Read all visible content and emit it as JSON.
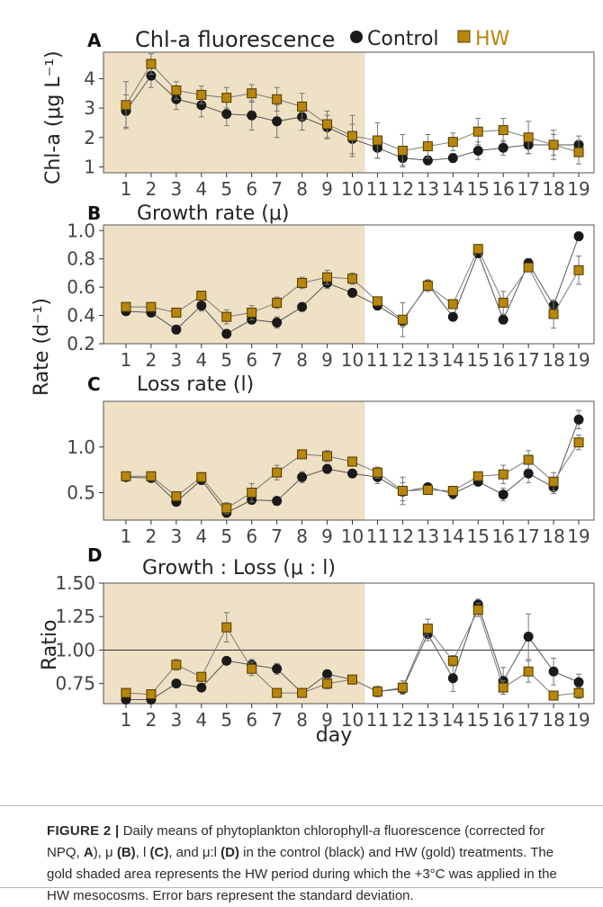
{
  "legend": {
    "control": "Control",
    "hw": "HW",
    "control_color": "#1a1a1a",
    "hw_color": "#b8860b"
  },
  "colors": {
    "shade": "#efe1c5",
    "axis": "#333333",
    "grid": "#333333"
  },
  "caption": {
    "label": "FIGURE 2 |",
    "text_1": " Daily means of phytoplankton chlorophyll-",
    "a": "a",
    "text_2": " fluorescence (corrected for NPQ, ",
    "A": "A",
    "text_3": "), μ ",
    "B": "(B)",
    "text_4": ", l ",
    "C": "(C)",
    "text_5": ", and μ:l ",
    "D": "(D)",
    "text_6": " in the control (black) and HW (gold) treatments. The gold shaded area represents the HW period during which the +3°C was applied in the HW mesocosms. Error bars represent the standard deviation."
  },
  "shared": {
    "rate_ylabel": "Rate (d⁻¹)",
    "xlabel": "day"
  },
  "chart_data": [
    {
      "panel": "A",
      "type": "line",
      "title": "Chl-a fluorescence",
      "ylabel": "Chl-a (μg L⁻¹)",
      "x": [
        1,
        2,
        3,
        4,
        5,
        6,
        7,
        8,
        9,
        10,
        11,
        12,
        13,
        14,
        15,
        16,
        17,
        18,
        19
      ],
      "ylim": [
        0.8,
        4.9
      ],
      "yticks": [
        1,
        2,
        3,
        4
      ],
      "shaded_days": [
        1,
        10
      ],
      "series": [
        {
          "name": "Control",
          "values": [
            2.9,
            4.1,
            3.3,
            3.1,
            2.8,
            2.75,
            2.55,
            2.7,
            2.35,
            1.95,
            1.65,
            1.3,
            1.22,
            1.3,
            1.55,
            1.65,
            1.75,
            1.75,
            1.75
          ],
          "err": [
            0.55,
            0.4,
            0.35,
            0.4,
            0.4,
            0.5,
            0.55,
            0.45,
            0.4,
            0.5,
            0.35,
            0.25,
            0.15,
            0.15,
            0.3,
            0.25,
            0.3,
            0.35,
            0.3
          ]
        },
        {
          "name": "HW",
          "values": [
            3.1,
            4.5,
            3.6,
            3.45,
            3.35,
            3.5,
            3.3,
            3.05,
            2.45,
            2.05,
            1.9,
            1.55,
            1.7,
            1.85,
            2.2,
            2.25,
            2.0,
            1.75,
            1.5
          ],
          "err": [
            0.8,
            0.35,
            0.3,
            0.3,
            0.35,
            0.3,
            0.4,
            0.45,
            0.45,
            0.7,
            0.6,
            0.55,
            0.4,
            0.3,
            0.45,
            0.4,
            0.55,
            0.5,
            0.4
          ]
        }
      ]
    },
    {
      "panel": "B",
      "type": "line",
      "title": "Growth rate (μ)",
      "ylabel": "",
      "x": [
        1,
        2,
        3,
        4,
        5,
        6,
        7,
        8,
        9,
        10,
        11,
        12,
        13,
        14,
        15,
        16,
        17,
        18,
        19
      ],
      "ylim": [
        0.2,
        1.04
      ],
      "yticks": [
        0.2,
        0.4,
        0.6,
        0.8,
        1.0
      ],
      "yticklabels": [
        "0.2",
        "0.4",
        "0.6",
        "0.8",
        "1.0"
      ],
      "shaded_days": [
        1,
        10
      ],
      "series": [
        {
          "name": "Control",
          "values": [
            0.43,
            0.42,
            0.3,
            0.47,
            0.27,
            0.37,
            0.35,
            0.46,
            0.63,
            0.56,
            0.47,
            0.36,
            0.62,
            0.39,
            0.84,
            0.37,
            0.77,
            0.47,
            0.96
          ],
          "err": [
            0.02,
            0.02,
            0.03,
            0.04,
            0.03,
            0.03,
            0.04,
            0.03,
            0.04,
            0.02,
            0.03,
            0.04,
            0.03,
            0.02,
            0.03,
            0.03,
            0.03,
            0.03,
            0.03
          ]
        },
        {
          "name": "HW",
          "values": [
            0.46,
            0.46,
            0.42,
            0.54,
            0.39,
            0.42,
            0.49,
            0.63,
            0.67,
            0.66,
            0.5,
            0.37,
            0.61,
            0.48,
            0.87,
            0.49,
            0.74,
            0.41,
            0.72
          ],
          "err": [
            0.03,
            0.03,
            0.02,
            0.02,
            0.05,
            0.05,
            0.04,
            0.04,
            0.05,
            0.04,
            0.02,
            0.12,
            0.04,
            0.02,
            0.03,
            0.08,
            0.03,
            0.1,
            0.1
          ]
        }
      ]
    },
    {
      "panel": "C",
      "type": "line",
      "title": "Loss rate (l)",
      "ylabel": "",
      "x": [
        1,
        2,
        3,
        4,
        5,
        6,
        7,
        8,
        9,
        10,
        11,
        12,
        13,
        14,
        15,
        16,
        17,
        18,
        19
      ],
      "ylim": [
        0.2,
        1.5
      ],
      "yticks": [
        0.5,
        1.0
      ],
      "yticklabels": [
        "0.5",
        "1.0"
      ],
      "shaded_days": [
        1,
        10
      ],
      "series": [
        {
          "name": "Control",
          "values": [
            0.67,
            0.66,
            0.4,
            0.64,
            0.28,
            0.42,
            0.41,
            0.67,
            0.76,
            0.71,
            0.67,
            0.51,
            0.56,
            0.49,
            0.62,
            0.48,
            0.71,
            0.56,
            1.3
          ],
          "err": [
            0.03,
            0.03,
            0.03,
            0.05,
            0.05,
            0.04,
            0.03,
            0.06,
            0.05,
            0.04,
            0.07,
            0.1,
            0.04,
            0.06,
            0.04,
            0.07,
            0.1,
            0.07,
            0.1
          ]
        },
        {
          "name": "HW",
          "values": [
            0.68,
            0.68,
            0.46,
            0.67,
            0.33,
            0.5,
            0.72,
            0.92,
            0.9,
            0.84,
            0.72,
            0.52,
            0.53,
            0.52,
            0.68,
            0.7,
            0.86,
            0.62,
            1.05
          ],
          "err": [
            0.03,
            0.03,
            0.03,
            0.05,
            0.06,
            0.1,
            0.08,
            0.03,
            0.06,
            0.05,
            0.06,
            0.15,
            0.04,
            0.05,
            0.04,
            0.1,
            0.1,
            0.1,
            0.08
          ]
        }
      ]
    },
    {
      "panel": "D",
      "type": "line",
      "title": "Growth : Loss (μ : l)",
      "ylabel": "Ratio",
      "xlabel": "day",
      "x": [
        1,
        2,
        3,
        4,
        5,
        6,
        7,
        8,
        9,
        10,
        11,
        12,
        13,
        14,
        15,
        16,
        17,
        18,
        19
      ],
      "ylim": [
        0.6,
        1.5
      ],
      "yticks": [
        0.75,
        1.0,
        1.25,
        1.5
      ],
      "yticklabels": [
        "0.75",
        "1.00",
        "1.25",
        "1.50"
      ],
      "hline": 1.0,
      "shaded_days": [
        1,
        10
      ],
      "series": [
        {
          "name": "Control",
          "values": [
            0.63,
            0.63,
            0.75,
            0.72,
            0.92,
            0.89,
            0.86,
            0.68,
            0.82,
            0.78,
            0.69,
            0.71,
            1.12,
            0.79,
            1.34,
            0.77,
            1.1,
            0.84,
            0.76
          ],
          "err": [
            0.02,
            0.02,
            0.02,
            0.02,
            0.02,
            0.04,
            0.04,
            0.02,
            0.03,
            0.03,
            0.04,
            0.03,
            0.05,
            0.1,
            0.04,
            0.1,
            0.17,
            0.1,
            0.06
          ]
        },
        {
          "name": "HW",
          "values": [
            0.68,
            0.67,
            0.89,
            0.8,
            1.17,
            0.86,
            0.68,
            0.68,
            0.75,
            0.78,
            0.69,
            0.72,
            1.16,
            0.92,
            1.3,
            0.72,
            0.84,
            0.66,
            0.68
          ],
          "err": [
            0.03,
            0.03,
            0.04,
            0.02,
            0.11,
            0.05,
            0.02,
            0.02,
            0.04,
            0.02,
            0.03,
            0.05,
            0.07,
            0.04,
            0.05,
            0.05,
            0.08,
            0.02,
            0.04
          ]
        }
      ]
    }
  ]
}
